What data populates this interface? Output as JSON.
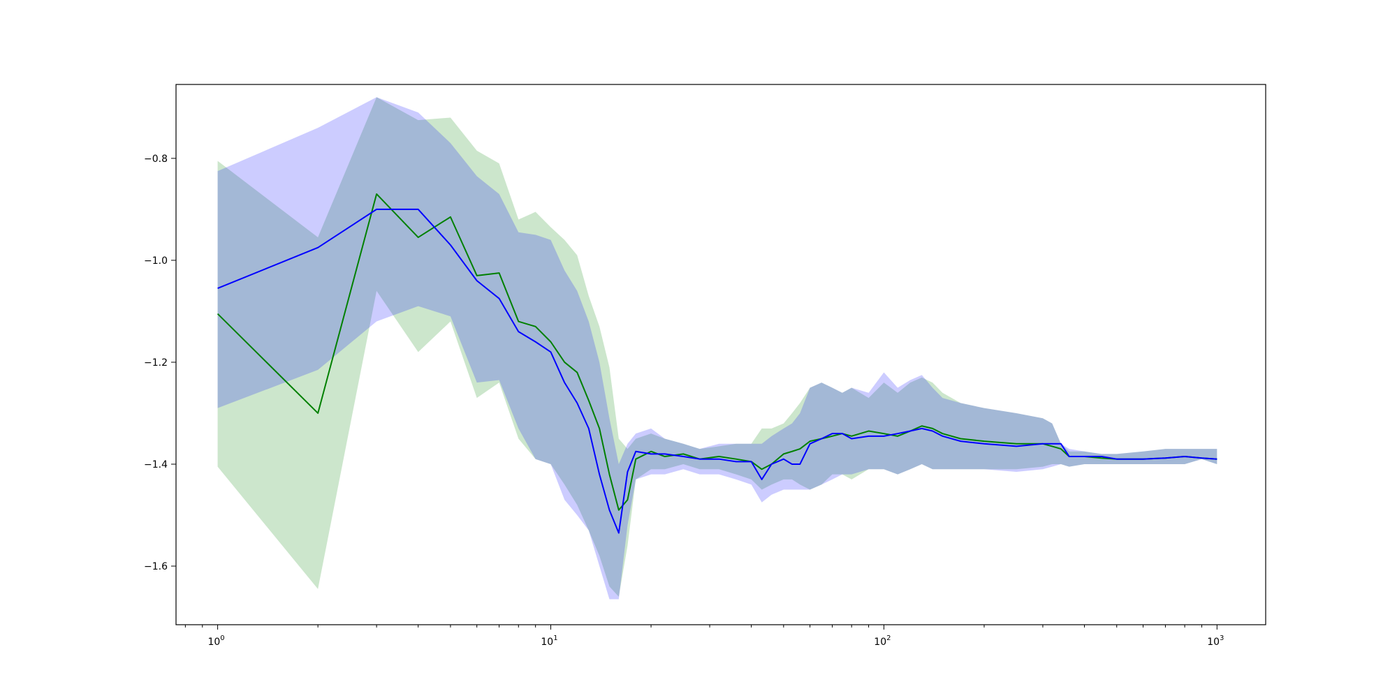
{
  "chart_data": {
    "type": "line",
    "xscale": "log",
    "xlim": [
      0.75,
      1400
    ],
    "ylim": [
      -1.715,
      -0.655
    ],
    "grid": false,
    "legend": "none",
    "x_ticks": [
      {
        "value": 1,
        "base": "10",
        "exp": "0"
      },
      {
        "value": 10,
        "base": "10",
        "exp": "1"
      },
      {
        "value": 100,
        "base": "10",
        "exp": "2"
      },
      {
        "value": 1000,
        "base": "10",
        "exp": "3"
      }
    ],
    "y_ticks": [
      {
        "value": -0.8,
        "label": "−0.8"
      },
      {
        "value": -1.0,
        "label": "−1.0"
      },
      {
        "value": -1.2,
        "label": "−1.2"
      },
      {
        "value": -1.4,
        "label": "−1.4"
      },
      {
        "value": -1.6,
        "label": "−1.6"
      }
    ],
    "series": [
      {
        "color": "#008000",
        "fill_color": "#008000",
        "x": [
          1,
          2,
          3,
          4,
          5,
          6,
          7,
          8,
          9,
          10,
          11,
          12,
          13,
          14,
          15,
          16,
          17,
          18,
          20,
          22,
          25,
          28,
          32,
          36,
          40,
          43,
          46,
          50,
          53,
          56,
          60,
          65,
          70,
          75,
          80,
          90,
          100,
          110,
          120,
          130,
          140,
          150,
          170,
          200,
          250,
          300,
          320,
          340,
          360,
          400,
          450,
          500,
          600,
          700,
          800,
          900,
          1000
        ],
        "y": [
          -1.105,
          -1.3,
          -0.87,
          -0.955,
          -0.915,
          -1.03,
          -1.025,
          -1.12,
          -1.13,
          -1.16,
          -1.2,
          -1.22,
          -1.275,
          -1.33,
          -1.42,
          -1.49,
          -1.47,
          -1.39,
          -1.375,
          -1.385,
          -1.38,
          -1.39,
          -1.385,
          -1.39,
          -1.395,
          -1.41,
          -1.4,
          -1.38,
          -1.375,
          -1.37,
          -1.355,
          -1.35,
          -1.345,
          -1.34,
          -1.345,
          -1.335,
          -1.34,
          -1.345,
          -1.335,
          -1.325,
          -1.33,
          -1.34,
          -1.35,
          -1.355,
          -1.36,
          -1.36,
          -1.365,
          -1.37,
          -1.385,
          -1.385,
          -1.388,
          -1.39,
          -1.39,
          -1.388,
          -1.385,
          -1.388,
          -1.39
        ],
        "lower": [
          -1.405,
          -1.645,
          -1.06,
          -1.18,
          -1.12,
          -1.27,
          -1.24,
          -1.35,
          -1.39,
          -1.4,
          -1.44,
          -1.48,
          -1.53,
          -1.58,
          -1.64,
          -1.66,
          -1.56,
          -1.43,
          -1.41,
          -1.41,
          -1.4,
          -1.41,
          -1.41,
          -1.42,
          -1.43,
          -1.45,
          -1.44,
          -1.43,
          -1.43,
          -1.44,
          -1.45,
          -1.44,
          -1.42,
          -1.42,
          -1.43,
          -1.41,
          -1.41,
          -1.42,
          -1.41,
          -1.4,
          -1.41,
          -1.41,
          -1.41,
          -1.41,
          -1.41,
          -1.405,
          -1.4,
          -1.4,
          -1.405,
          -1.4,
          -1.4,
          -1.4,
          -1.4,
          -1.4,
          -1.4,
          -1.39,
          -1.4
        ],
        "upper": [
          -0.805,
          -0.955,
          -0.68,
          -0.725,
          -0.72,
          -0.785,
          -0.81,
          -0.92,
          -0.905,
          -0.935,
          -0.96,
          -0.99,
          -1.07,
          -1.13,
          -1.21,
          -1.35,
          -1.37,
          -1.35,
          -1.34,
          -1.35,
          -1.36,
          -1.37,
          -1.365,
          -1.36,
          -1.36,
          -1.33,
          -1.33,
          -1.32,
          -1.3,
          -1.28,
          -1.25,
          -1.24,
          -1.25,
          -1.26,
          -1.25,
          -1.27,
          -1.24,
          -1.26,
          -1.24,
          -1.23,
          -1.24,
          -1.26,
          -1.28,
          -1.29,
          -1.3,
          -1.31,
          -1.32,
          -1.36,
          -1.375,
          -1.375,
          -1.38,
          -1.38,
          -1.375,
          -1.37,
          -1.37,
          -1.37,
          -1.37
        ]
      },
      {
        "color": "#0000ff",
        "fill_color": "#0000ff",
        "x": [
          1,
          2,
          3,
          4,
          5,
          6,
          7,
          8,
          9,
          10,
          11,
          12,
          13,
          14,
          15,
          16,
          17,
          18,
          20,
          22,
          25,
          28,
          32,
          36,
          40,
          43,
          46,
          50,
          53,
          56,
          60,
          65,
          70,
          75,
          80,
          90,
          100,
          110,
          120,
          130,
          140,
          150,
          170,
          200,
          250,
          300,
          320,
          340,
          360,
          400,
          450,
          500,
          600,
          700,
          800,
          900,
          1000
        ],
        "y": [
          -1.055,
          -0.975,
          -0.9,
          -0.9,
          -0.97,
          -1.04,
          -1.075,
          -1.14,
          -1.16,
          -1.18,
          -1.24,
          -1.28,
          -1.33,
          -1.42,
          -1.49,
          -1.535,
          -1.415,
          -1.375,
          -1.38,
          -1.38,
          -1.385,
          -1.39,
          -1.39,
          -1.395,
          -1.395,
          -1.43,
          -1.4,
          -1.39,
          -1.4,
          -1.4,
          -1.36,
          -1.35,
          -1.34,
          -1.34,
          -1.35,
          -1.345,
          -1.345,
          -1.34,
          -1.335,
          -1.33,
          -1.335,
          -1.345,
          -1.355,
          -1.36,
          -1.365,
          -1.36,
          -1.36,
          -1.36,
          -1.385,
          -1.385,
          -1.385,
          -1.39,
          -1.39,
          -1.388,
          -1.385,
          -1.388,
          -1.39
        ],
        "lower": [
          -1.29,
          -1.215,
          -1.12,
          -1.09,
          -1.11,
          -1.24,
          -1.235,
          -1.33,
          -1.39,
          -1.4,
          -1.47,
          -1.5,
          -1.53,
          -1.6,
          -1.665,
          -1.665,
          -1.52,
          -1.43,
          -1.42,
          -1.42,
          -1.41,
          -1.42,
          -1.42,
          -1.43,
          -1.44,
          -1.475,
          -1.46,
          -1.45,
          -1.45,
          -1.45,
          -1.45,
          -1.44,
          -1.43,
          -1.42,
          -1.42,
          -1.41,
          -1.41,
          -1.42,
          -1.41,
          -1.4,
          -1.41,
          -1.41,
          -1.41,
          -1.41,
          -1.415,
          -1.41,
          -1.405,
          -1.4,
          -1.405,
          -1.4,
          -1.4,
          -1.4,
          -1.4,
          -1.4,
          -1.4,
          -1.39,
          -1.4
        ],
        "upper": [
          -0.825,
          -0.74,
          -0.68,
          -0.71,
          -0.77,
          -0.835,
          -0.87,
          -0.945,
          -0.95,
          -0.96,
          -1.02,
          -1.06,
          -1.12,
          -1.2,
          -1.31,
          -1.4,
          -1.36,
          -1.34,
          -1.33,
          -1.35,
          -1.36,
          -1.37,
          -1.36,
          -1.36,
          -1.36,
          -1.36,
          -1.345,
          -1.33,
          -1.32,
          -1.3,
          -1.25,
          -1.24,
          -1.25,
          -1.26,
          -1.25,
          -1.26,
          -1.22,
          -1.25,
          -1.235,
          -1.225,
          -1.25,
          -1.27,
          -1.28,
          -1.29,
          -1.3,
          -1.31,
          -1.32,
          -1.36,
          -1.37,
          -1.375,
          -1.38,
          -1.38,
          -1.375,
          -1.37,
          -1.37,
          -1.37,
          -1.37
        ]
      }
    ]
  }
}
